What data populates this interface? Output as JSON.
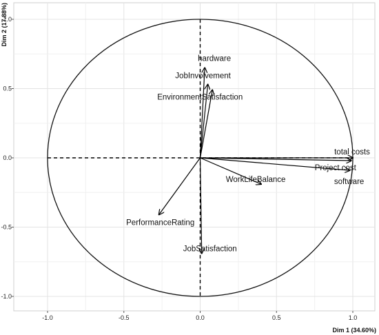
{
  "chart_data": {
    "type": "scatter",
    "subtype": "pca-variables-correlation-circle",
    "title": "",
    "xlabel": "Dim 1 (34.60%)",
    "ylabel": "Dim 2 (17.88%)",
    "xlim": [
      -1.0,
      1.0
    ],
    "ylim": [
      -1.0,
      1.0
    ],
    "xticks": [
      -1.0,
      -0.5,
      0.0,
      0.5,
      1.0
    ],
    "yticks": [
      -1.0,
      -0.5,
      0.0,
      0.5,
      1.0
    ],
    "xtick_labels": [
      "-1.0",
      "-0.5",
      "0.0",
      "0.5",
      "1.0"
    ],
    "ytick_labels": [
      "-1.0",
      "-0.5",
      "0.0",
      "0.5",
      "1.0"
    ],
    "grid": true,
    "unit_circle": true,
    "dashed_zero_lines": true,
    "arrow_color": "#000000",
    "variables": [
      {
        "label": "hardware",
        "x": 0.03,
        "y": 0.65
      },
      {
        "label": "JobInvolvement",
        "x": 0.05,
        "y": 0.53
      },
      {
        "label": "EnvironmentSatisfaction",
        "x": 0.08,
        "y": 0.49
      },
      {
        "label": "total costs",
        "x": 1.0,
        "y": 0.0
      },
      {
        "label": "Project cost",
        "x": 0.99,
        "y": -0.02
      },
      {
        "label": "software",
        "x": 0.98,
        "y": -0.09
      },
      {
        "label": "WorkLifeBalance",
        "x": 0.4,
        "y": -0.19
      },
      {
        "label": "PerformanceRating",
        "x": -0.27,
        "y": -0.41
      },
      {
        "label": "JobSatisfaction",
        "x": 0.01,
        "y": -0.69
      }
    ]
  }
}
